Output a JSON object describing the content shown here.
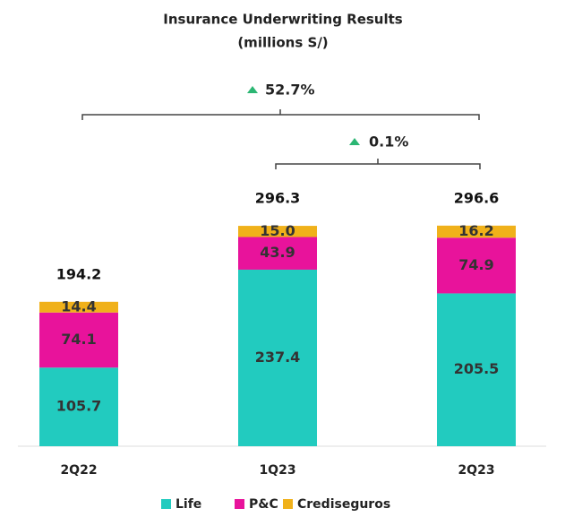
{
  "chart_data": {
    "type": "stacked_bar",
    "title": "Insurance Underwriting Results",
    "subtitle": "(millions S/)",
    "categories": [
      "2Q22",
      "1Q23",
      "2Q23"
    ],
    "series": [
      {
        "name": "Life",
        "color": "#22cbbf",
        "values": [
          105.7,
          237.4,
          205.5
        ]
      },
      {
        "name": "P&C",
        "color": "#e8139b",
        "values": [
          74.1,
          43.9,
          74.9
        ]
      },
      {
        "name": "Crediseguros",
        "color": "#f0b11a",
        "values": [
          14.4,
          15.0,
          16.2
        ],
        "value_labels": [
          "14.4",
          "15.0",
          "16.2"
        ]
      }
    ],
    "totals": [
      194.2,
      296.3,
      296.6
    ],
    "annotations": [
      {
        "text": "52.7%"
      },
      {
        "text": "0.1%"
      }
    ],
    "ylim": [
      0,
      300
    ]
  }
}
